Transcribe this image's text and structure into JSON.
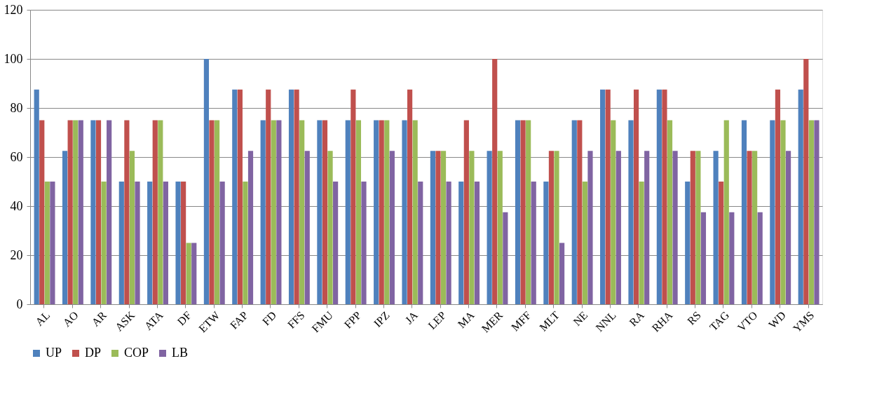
{
  "chart_data": {
    "type": "bar",
    "categories": [
      "AL",
      "AO",
      "AR",
      "ASK",
      "ATA",
      "DF",
      "ETW",
      "FAP",
      "FD",
      "FFS",
      "FMU",
      "FPP",
      "IPZ",
      "JA",
      "LEP",
      "MA",
      "MER",
      "MFF",
      "MLT",
      "NE",
      "NNL",
      "RA",
      "RHA",
      "RS",
      "TAG",
      "VTO",
      "WD",
      "YMS"
    ],
    "series": [
      {
        "name": "UP",
        "color": "#4f81bd",
        "values": [
          87.5,
          62.5,
          75,
          50,
          50,
          50,
          100,
          87.5,
          75,
          87.5,
          75,
          75,
          75,
          75,
          62.5,
          50,
          62.5,
          75,
          50,
          75,
          87.5,
          75,
          87.5,
          50,
          62.5,
          75,
          75,
          87.5
        ]
      },
      {
        "name": "DP",
        "color": "#c0504d",
        "values": [
          75,
          75,
          75,
          75,
          75,
          50,
          75,
          87.5,
          87.5,
          87.5,
          75,
          87.5,
          75,
          87.5,
          62.5,
          75,
          100,
          75,
          62.5,
          75,
          87.5,
          87.5,
          87.5,
          62.5,
          50,
          62.5,
          87.5,
          100
        ]
      },
      {
        "name": "COP",
        "color": "#9bbb59",
        "values": [
          50,
          75,
          50,
          62.5,
          75,
          25,
          75,
          50,
          75,
          75,
          62.5,
          75,
          75,
          75,
          62.5,
          62.5,
          62.5,
          75,
          62.5,
          50,
          75,
          50,
          75,
          62.5,
          75,
          62.5,
          75,
          75
        ]
      },
      {
        "name": "LB",
        "color": "#8064a2",
        "values": [
          50,
          75,
          75,
          50,
          50,
          25,
          50,
          62.5,
          75,
          62.5,
          50,
          50,
          62.5,
          50,
          50,
          50,
          37.5,
          50,
          25,
          62.5,
          62.5,
          62.5,
          62.5,
          37.5,
          37.5,
          37.5,
          62.5,
          75
        ]
      }
    ],
    "ylim": [
      0,
      120
    ],
    "yticks": [
      0,
      20,
      40,
      60,
      80,
      100,
      120
    ],
    "grid": "y",
    "legend": "bottom"
  }
}
